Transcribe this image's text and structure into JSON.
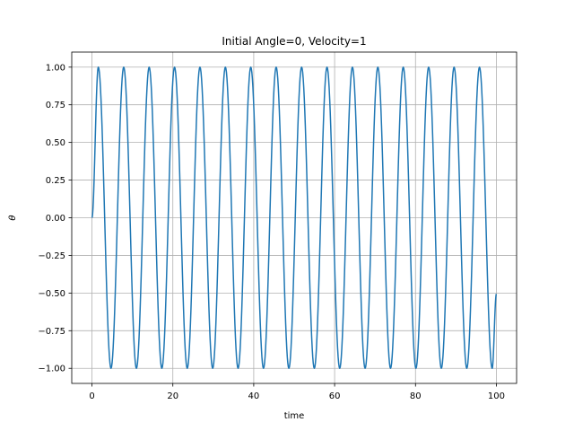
{
  "chart_data": {
    "type": "line",
    "title": "Initial Angle=0, Velocity=1",
    "xlabel": "time",
    "ylabel": "θ",
    "xlim": [
      -5,
      105
    ],
    "ylim": [
      -1.1,
      1.1
    ],
    "grid": true,
    "x_ticks": [
      0,
      20,
      40,
      60,
      80,
      100
    ],
    "x_tick_labels": [
      "0",
      "20",
      "40",
      "60",
      "80",
      "100"
    ],
    "y_ticks": [
      -1.0,
      -0.75,
      -0.5,
      -0.25,
      0.0,
      0.25,
      0.5,
      0.75,
      1.0
    ],
    "y_tick_labels": [
      "−1.00",
      "−0.75",
      "−0.50",
      "−0.25",
      "0.00",
      "0.25",
      "0.50",
      "0.75",
      "1.00"
    ],
    "series": [
      {
        "color": "#1f77b4",
        "x": [
          0,
          1.57,
          4.71,
          7.85,
          10.99,
          14.14,
          17.28,
          20.42,
          23.56,
          26.7,
          29.85,
          32.99,
          36.13,
          39.27,
          42.41,
          45.55,
          48.69,
          51.84,
          54.98,
          58.12,
          61.26,
          64.4,
          67.54,
          70.69,
          73.83,
          76.97,
          80.11,
          83.25,
          86.39,
          89.54,
          92.68,
          95.82,
          98.96,
          100
        ],
        "y": [
          0,
          1,
          -1,
          1,
          -1,
          1,
          -1,
          1,
          -1,
          1,
          -1,
          1,
          -1,
          1,
          -1,
          1,
          -1,
          1,
          -1,
          1,
          -1,
          1,
          -1,
          1,
          -1,
          1,
          -1,
          1,
          -1,
          1,
          -1,
          1,
          -1,
          -0.506
        ]
      }
    ]
  }
}
